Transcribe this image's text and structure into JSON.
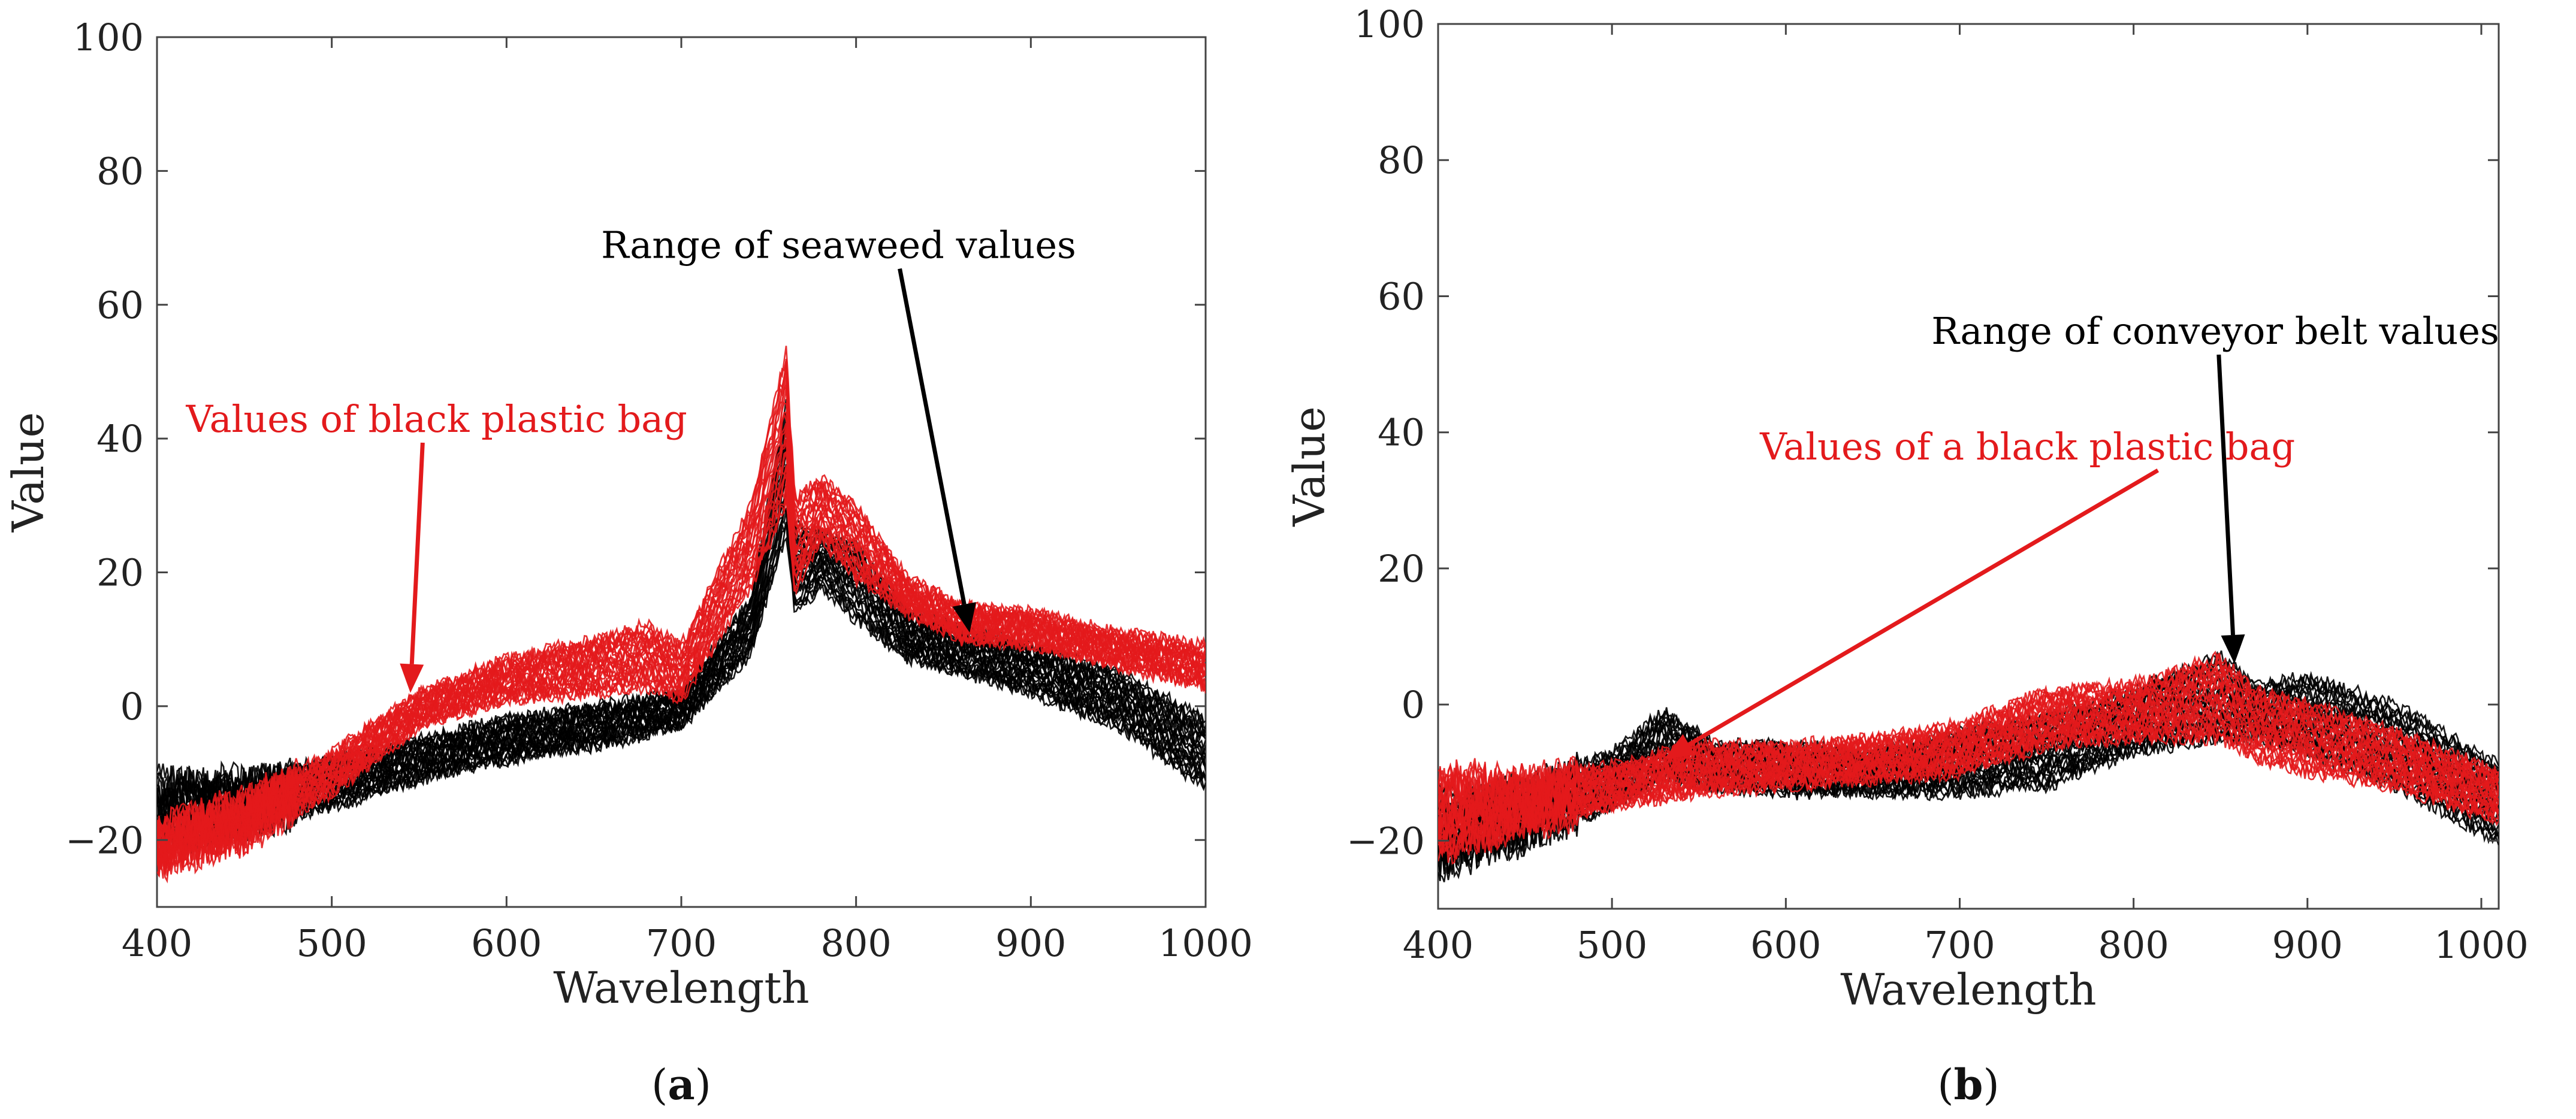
{
  "chart_data": [
    {
      "type": "line",
      "panel": "a",
      "caption": {
        "open": "(",
        "letter": "a",
        "close": ")"
      },
      "xlabel": "Wavelength",
      "ylabel": "Value",
      "xlim": [
        400,
        1000
      ],
      "ylim": [
        -30,
        100
      ],
      "xticks": [
        400,
        500,
        600,
        700,
        800,
        900,
        1000
      ],
      "yticks": [
        -20,
        0,
        20,
        40,
        60,
        80,
        100
      ],
      "series": [
        {
          "name": "seaweed",
          "color": "#000000",
          "x": [
            400,
            450,
            500,
            550,
            600,
            650,
            700,
            740,
            760,
            765,
            780,
            800,
            830,
            860,
            900,
            950,
            1000
          ],
          "lower": [
            -21,
            -18,
            -15,
            -11,
            -8,
            -6,
            -3,
            8,
            26,
            14,
            18,
            13,
            7,
            5,
            2,
            -3,
            -12
          ],
          "upper": [
            -11,
            -11,
            -8,
            -5,
            -2,
            0,
            2,
            16,
            45,
            27,
            26,
            24,
            14,
            12,
            9,
            5,
            -2
          ],
          "values": [
            -16,
            -15,
            -12,
            -8,
            -5,
            -3,
            -1,
            12,
            40,
            20,
            22,
            18,
            10,
            8,
            5,
            1,
            -7
          ]
        },
        {
          "name": "black plastic bag",
          "color": "#e31a1c",
          "x": [
            400,
            450,
            500,
            550,
            600,
            650,
            680,
            700,
            740,
            760,
            765,
            780,
            800,
            830,
            860,
            900,
            950,
            1000
          ],
          "lower": [
            -24,
            -20,
            -13,
            -3,
            1,
            2,
            3,
            1,
            18,
            30,
            17,
            25,
            19,
            14,
            10,
            9,
            6,
            3
          ],
          "upper": [
            -18,
            -14,
            -7,
            2,
            7,
            10,
            12,
            9,
            30,
            53,
            31,
            34,
            30,
            19,
            15,
            14,
            11,
            9
          ],
          "values": [
            -21,
            -17,
            -10,
            -1,
            4,
            6,
            8,
            5,
            24,
            50,
            24,
            30,
            25,
            16,
            12,
            11,
            8,
            6
          ]
        }
      ],
      "annotations": [
        {
          "text": "Range of seaweed values",
          "color": "#000000",
          "text_at": [
            790,
            67
          ],
          "arrow_to": [
            865,
            11
          ]
        },
        {
          "text": "Values of black plastic bag",
          "color": "#e31a1c",
          "text_at": [
            560,
            41
          ],
          "arrow_to": [
            545,
            2
          ]
        }
      ]
    },
    {
      "type": "line",
      "panel": "b",
      "caption": {
        "open": "(",
        "letter": "b",
        "close": ")"
      },
      "xlabel": "Wavelength",
      "ylabel": "Value",
      "xlim": [
        400,
        1010
      ],
      "ylim": [
        -30,
        100
      ],
      "xticks": [
        400,
        500,
        600,
        700,
        800,
        900,
        1000
      ],
      "yticks": [
        -20,
        0,
        20,
        40,
        60,
        80,
        100
      ],
      "series": [
        {
          "name": "conveyor belt",
          "color": "#000000",
          "x": [
            400,
            450,
            500,
            530,
            560,
            600,
            650,
            700,
            750,
            800,
            850,
            870,
            900,
            950,
            1010
          ],
          "lower": [
            -24,
            -20,
            -15,
            -11,
            -12,
            -13,
            -13,
            -13,
            -12,
            -7,
            -5,
            -5,
            -7,
            -12,
            -20
          ],
          "upper": [
            -14,
            -12,
            -7,
            -1,
            -6,
            -6,
            -7,
            -4,
            -2,
            2,
            7,
            3,
            4,
            0,
            -9
          ],
          "values": [
            -19,
            -16,
            -11,
            -6,
            -9,
            -9,
            -10,
            -8,
            -7,
            -3,
            1,
            -1,
            -2,
            -6,
            -15
          ]
        },
        {
          "name": "black plastic bag",
          "color": "#e31a1c",
          "x": [
            400,
            450,
            500,
            550,
            600,
            650,
            700,
            750,
            800,
            850,
            870,
            900,
            950,
            1010
          ],
          "lower": [
            -22,
            -18,
            -15,
            -13,
            -12,
            -11,
            -10,
            -6,
            -5,
            -5,
            -8,
            -10,
            -12,
            -17
          ],
          "upper": [
            -10,
            -11,
            -9,
            -6,
            -6,
            -5,
            -3,
            2,
            3,
            7,
            2,
            0,
            -4,
            -10
          ],
          "values": [
            -16,
            -14,
            -12,
            -9,
            -9,
            -8,
            -6,
            -2,
            -1,
            1,
            -3,
            -5,
            -8,
            -13
          ]
        }
      ],
      "annotations": [
        {
          "text": "Range of conveyor belt values",
          "color": "#000000",
          "text_at": [
            847,
            53
          ],
          "arrow_to": [
            858,
            6
          ]
        },
        {
          "text": "Values of a black plastic bag",
          "color": "#e31a1c",
          "text_at": [
            739,
            36
          ],
          "arrow_to": [
            530,
            -8
          ]
        }
      ]
    }
  ]
}
